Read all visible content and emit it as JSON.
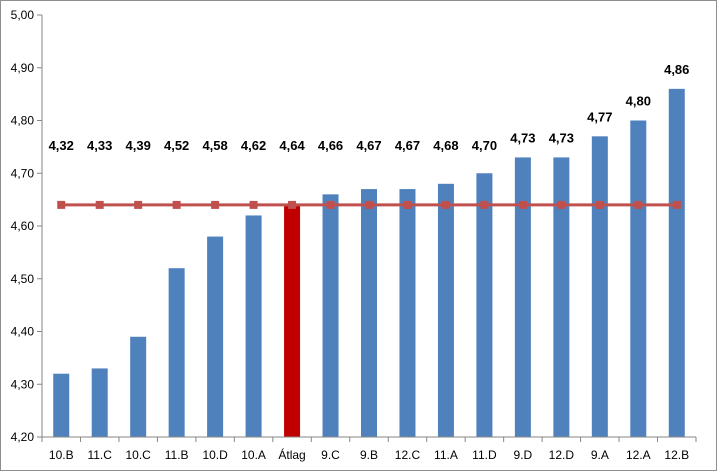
{
  "chart_data": {
    "type": "bar",
    "categories": [
      "10.B",
      "11.C",
      "10.C",
      "11.B",
      "10.D",
      "10.A",
      "Átlag",
      "9.C",
      "9.B",
      "12.C",
      "11.A",
      "11.D",
      "9.D",
      "12.D",
      "9.A",
      "12.A",
      "12.B"
    ],
    "values": [
      4.32,
      4.33,
      4.39,
      4.52,
      4.58,
      4.62,
      4.64,
      4.66,
      4.67,
      4.67,
      4.68,
      4.7,
      4.73,
      4.73,
      4.77,
      4.8,
      4.86
    ],
    "data_labels": [
      "4,32",
      "4,33",
      "4,39",
      "4,52",
      "4,58",
      "4,62",
      "4,64",
      "4,66",
      "4,67",
      "4,67",
      "4,68",
      "4,70",
      "4,73",
      "4,73",
      "4,77",
      "4,80",
      "4,86"
    ],
    "highlight_category": "Átlag",
    "average_line": {
      "value": 4.64,
      "marker": "square"
    },
    "ylim": [
      4.2,
      5.0
    ],
    "yticks": [
      4.2,
      4.3,
      4.4,
      4.5,
      4.6,
      4.7,
      4.8,
      4.9,
      5.0
    ],
    "ytick_labels": [
      "4,20",
      "4,30",
      "4,40",
      "4,50",
      "4,60",
      "4,70",
      "4,80",
      "4,90",
      "5,00"
    ],
    "grid": false,
    "legend": "none",
    "title": "",
    "xlabel": "",
    "ylabel": "",
    "colors": {
      "bar": "#4f81bd",
      "highlight_bar": "#c00000",
      "average_line": "#c0504d",
      "average_marker": "#c0504d",
      "axis": "#868686"
    }
  }
}
